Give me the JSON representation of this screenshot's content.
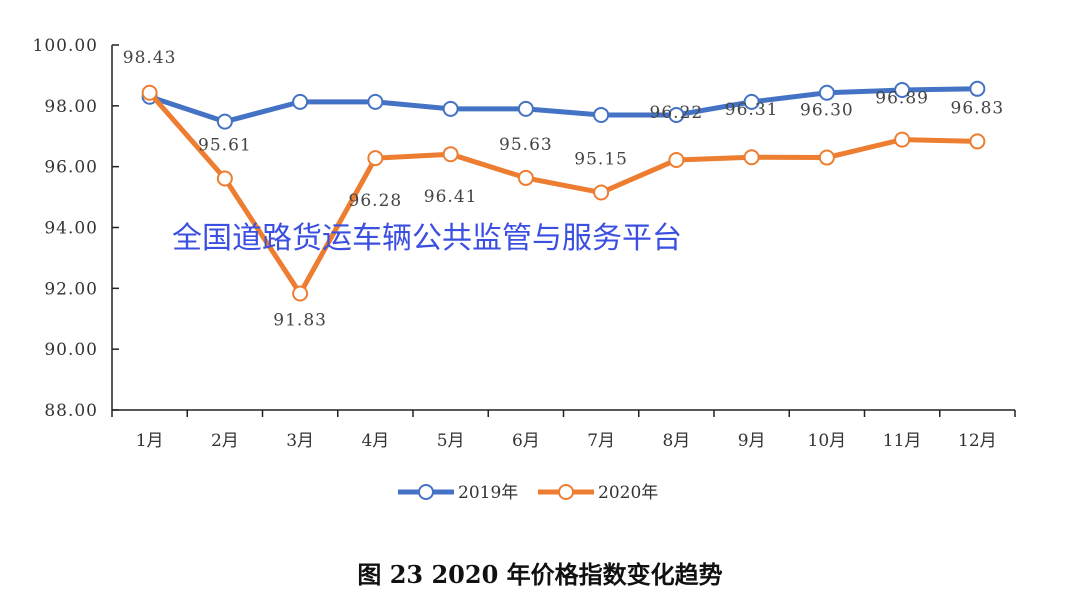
{
  "chart_data": {
    "type": "line",
    "title": "",
    "xlabel": "",
    "ylabel": "",
    "categories": [
      "1月",
      "2月",
      "3月",
      "4月",
      "5月",
      "6月",
      "7月",
      "8月",
      "9月",
      "10月",
      "11月",
      "12月"
    ],
    "ylim": [
      88,
      100
    ],
    "yticks": [
      "88.00",
      "90.00",
      "92.00",
      "94.00",
      "96.00",
      "98.00",
      "100.00"
    ],
    "grid": false,
    "legend": "bottom",
    "series": [
      {
        "name": "2019年",
        "color": "#4472c4",
        "values": [
          98.3,
          97.48,
          98.13,
          98.13,
          97.9,
          97.9,
          97.7,
          97.7,
          98.13,
          98.43,
          98.52,
          98.56
        ]
      },
      {
        "name": "2020年",
        "color": "#ed7d31",
        "values": [
          98.43,
          95.61,
          91.83,
          96.28,
          96.41,
          95.63,
          95.15,
          96.22,
          96.31,
          96.3,
          96.89,
          96.83
        ],
        "labels": [
          "98.43",
          "95.61",
          "91.83",
          "96.28",
          "96.41",
          "95.63",
          "95.15",
          "96.22",
          "96.31",
          "96.30",
          "96.89",
          "96.83"
        ]
      }
    ]
  },
  "watermark": "全国道路货运车辆公共监管与服务平台",
  "caption": "图 23  2020 年价格指数变化趋势"
}
